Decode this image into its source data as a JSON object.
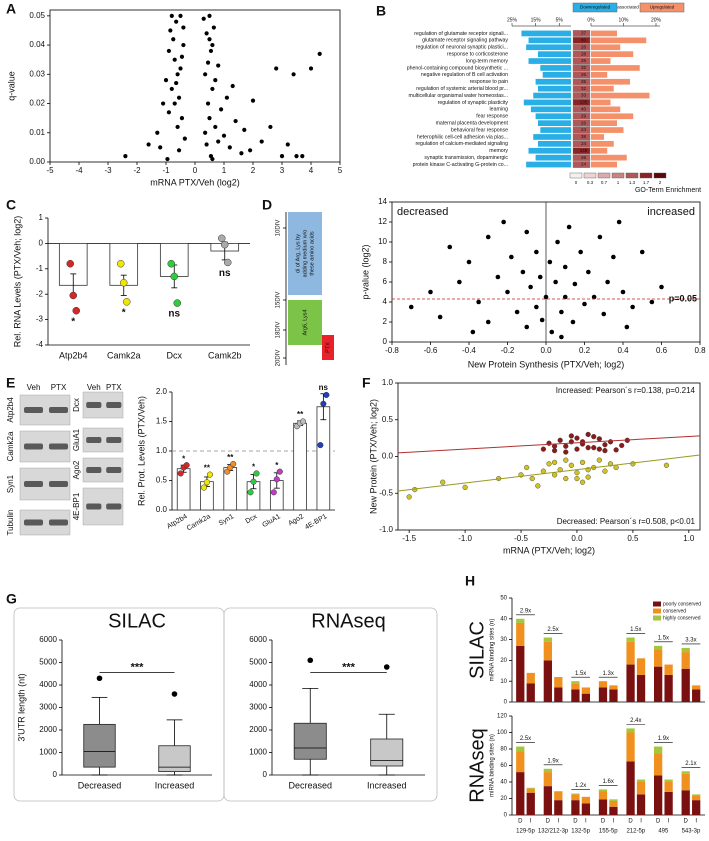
{
  "chart_data": [
    {
      "type": "scatter",
      "panel": "A",
      "xlabel": "mRNA PTX/Veh (log2)",
      "ylabel": "q-value",
      "color": "#000000",
      "xlim": [
        -5,
        5
      ],
      "xticks": [
        -5,
        -4,
        -3,
        -2,
        -1,
        0,
        1,
        2,
        3,
        4,
        5
      ],
      "ylim": [
        0,
        0.052
      ],
      "yticks": [
        {
          "value": 0,
          "label": "0.00"
        },
        0.01,
        0.02,
        0.03,
        0.04,
        0.05
      ],
      "x": [
        -2.4,
        -1.6,
        -1.3,
        -1.1,
        -1.0,
        -0.9,
        -0.85,
        -0.8,
        -0.75,
        -0.7,
        -0.65,
        -0.6,
        -0.55,
        -0.5,
        -0.45,
        -0.4,
        -0.35,
        -0.6,
        -0.7,
        -0.5,
        -0.8,
        -0.4,
        -0.9,
        -0.55,
        -0.65,
        -0.45,
        -1.2,
        -0.95,
        0.3,
        0.35,
        0.4,
        0.45,
        0.5,
        0.55,
        0.6,
        0.65,
        0.7,
        0.8,
        0.9,
        1.0,
        1.1,
        1.2,
        1.4,
        1.6,
        0.4,
        0.5,
        0.6,
        0.35,
        0.45,
        0.55,
        0.7,
        0.5,
        0.6,
        0.8,
        1.3,
        1.7,
        2.0,
        2.3,
        2.8,
        3.0,
        3.2,
        3.5,
        3.7,
        4.0,
        4.3,
        2.6,
        3.4,
        1.9
      ],
      "y": [
        0.002,
        0.006,
        0.01,
        0.02,
        0.028,
        0.038,
        0.045,
        0.05,
        0.042,
        0.035,
        0.048,
        0.03,
        0.022,
        0.05,
        0.015,
        0.04,
        0.008,
        0.012,
        0.02,
        0.032,
        0.025,
        0.046,
        0.017,
        0.004,
        0.027,
        0.036,
        0.005,
        0.001,
        0.049,
        0.03,
        0.044,
        0.02,
        0.05,
        0.038,
        0.025,
        0.046,
        0.012,
        0.033,
        0.018,
        0.009,
        0.022,
        0.005,
        0.014,
        0.003,
        0.006,
        0.015,
        0.04,
        0.01,
        0.034,
        0.002,
        0.028,
        0.042,
        0.001,
        0.007,
        0.026,
        0.011,
        0.021,
        0.007,
        0.032,
        0.002,
        0.006,
        0.002,
        0.002,
        0.032,
        0.037,
        0.012,
        0.03,
        0.004
      ]
    },
    {
      "type": "diverging",
      "panel": "B",
      "categories": [
        "regulation of glutamate receptor signali...",
        "glutamate receptor signaling pathway",
        "regulation of neuronal synaptic plastici...",
        "response to corticosterone",
        "long-term memory",
        "phenol-containing compound biosynthetic ...",
        "negative regulation of B cell activation",
        "response to pain",
        "regulation of systemic arterial blood pr...",
        "multicellular organismal water homeostas...",
        "regulation of synaptic plasticity",
        "learning",
        "fear response",
        "maternal placenta development",
        "behavioral fear response",
        "heterophilic cell-cell adhesion via plas...",
        "regulation of calcium-mediated signaling",
        "memory",
        "synaptic transmission, dopaminergic",
        "protein kinase C-activating G-protein co..."
      ],
      "series": [
        {
          "name": "Downregulated",
          "color": "#29aee6",
          "values": [
            21,
            18,
            19,
            14,
            18,
            13,
            12,
            15,
            14,
            16,
            20,
            17,
            15,
            14,
            13,
            16,
            14,
            18,
            15,
            19
          ]
        },
        {
          "name": "Upregulated",
          "color": "#f4916a",
          "values": [
            8,
            17,
            9,
            13,
            6,
            15,
            5,
            12,
            7,
            18,
            6,
            9,
            13,
            8,
            10,
            4,
            7,
            5,
            11,
            8
          ]
        }
      ],
      "legend_middle": "associated",
      "counts": [
        37,
        80,
        26,
        28,
        26,
        32,
        26,
        35,
        32,
        33,
        135,
        40,
        29,
        26,
        24,
        38,
        24,
        149,
        26,
        24
      ],
      "enrichment": [
        1.3,
        1.7,
        1.3,
        1.3,
        1.3,
        1.3,
        1.3,
        1.3,
        1.3,
        1.3,
        1.7,
        1.3,
        1.3,
        1.3,
        1.3,
        1.3,
        1.3,
        1.7,
        1.3,
        1.3
      ],
      "down_lim": [
        0,
        25
      ],
      "down_ticks": [
        {
          "value": 25,
          "label": "25%"
        },
        {
          "value": 15,
          "label": "15%"
        },
        {
          "value": 5,
          "label": "5%"
        }
      ],
      "up_lim": [
        0,
        20
      ],
      "up_ticks": [
        {
          "value": 0,
          "label": "0%"
        },
        {
          "value": 10,
          "label": "10%"
        },
        {
          "value": 20,
          "label": "20%"
        }
      ],
      "colorbar": {
        "ticks": [
          0,
          0.3,
          0.7,
          1,
          1.3,
          1.7,
          2
        ],
        "colors": [
          "#f7eeee",
          "#ecd2d2",
          "#dcaaaa",
          "#c98383",
          "#b25757",
          "#8a2424",
          "#5a0808"
        ]
      },
      "xlabel": "GO-Term Enrichment"
    },
    {
      "type": "bar",
      "panel": "C",
      "ylabel": "Rel. RNA Levels (PTX/Veh; log2)",
      "categories": [
        "Atp2b4",
        "Camk2a",
        "Dcx",
        "Camk2b"
      ],
      "values": [
        -1.65,
        -1.65,
        -1.3,
        -0.3
      ],
      "errors": [
        0.45,
        0.4,
        0.45,
        0.35
      ],
      "points": [
        [
          -0.8,
          -2.05,
          -2.65
        ],
        [
          -0.8,
          -1.55,
          -2.3
        ],
        [
          -0.8,
          -1.3,
          -2.35
        ],
        [
          0.2,
          -0.05,
          -0.75
        ]
      ],
      "point_colors": [
        "#d62728",
        "#f2e600",
        "#2ecc40",
        "#aaaaaa"
      ],
      "significance": [
        "*",
        "*",
        "ns",
        "ns"
      ],
      "ylim": [
        -4,
        1
      ],
      "yticks": [
        -4,
        -3,
        -2,
        -1,
        0,
        1
      ]
    },
    {
      "type": "scatter",
      "panel": "D",
      "xlabel": "New Protein Synthesis (PTX/Veh; log2)",
      "ylabel": "p-value (log2)",
      "color": "#000000",
      "xlim": [
        -0.8,
        0.8
      ],
      "xticks": [
        -0.8,
        -0.6,
        -0.4,
        -0.2,
        {
          "value": 0,
          "label": "0.0"
        },
        0.2,
        0.4,
        0.6,
        0.8
      ],
      "ylim": [
        0,
        14
      ],
      "yticks": [
        0,
        2,
        4,
        6,
        8,
        10,
        12,
        14
      ],
      "zero_line": true,
      "hline": {
        "value": 4.3,
        "label": "p=0.05",
        "color": "#d0201a"
      },
      "annotations": [
        {
          "text": "decreased",
          "color": "#1a9a3a"
        },
        {
          "text": "increased",
          "color": "#d0201a"
        }
      ],
      "x": [
        -0.7,
        -0.5,
        -0.45,
        -0.4,
        -0.35,
        -0.3,
        -0.3,
        -0.25,
        -0.22,
        -0.2,
        -0.18,
        -0.15,
        -0.12,
        -0.1,
        -0.1,
        -0.08,
        -0.05,
        -0.05,
        -0.03,
        -0.02,
        0,
        0.02,
        0.03,
        0.05,
        0.06,
        0.08,
        0.1,
        0.1,
        0.12,
        0.14,
        0.15,
        0.18,
        0.2,
        0.22,
        0.25,
        0.28,
        0.3,
        0.32,
        0.35,
        0.4,
        0.45,
        0.5,
        0.55,
        0.6,
        -0.6,
        -0.55,
        0.38,
        0.42,
        -0.38,
        0.08
      ],
      "y": [
        3.5,
        9.5,
        6,
        8,
        4,
        10.5,
        2,
        6.5,
        12,
        5,
        8.5,
        3,
        7,
        11,
        1.5,
        5.5,
        9,
        3.5,
        6.5,
        2.2,
        4.5,
        8,
        1,
        6,
        10,
        3,
        7.5,
        4.5,
        11.5,
        2,
        5.8,
        9,
        3.8,
        7,
        4.5,
        10.5,
        2.8,
        6,
        8.5,
        5,
        3.5,
        9,
        4,
        5.5,
        5,
        2.5,
        12,
        1.5,
        1,
        0.5
      ]
    },
    {
      "type": "bar",
      "panel": "E",
      "ylabel": "Rel. Prot. Levels (PTX/Veh)",
      "categories": [
        "Atp2b4",
        "Camk2a",
        "Syn1",
        "Dcx",
        "GluA1",
        "Ago2",
        "4E-BP1"
      ],
      "values": [
        0.7,
        0.48,
        0.72,
        0.48,
        0.5,
        1.47,
        1.75
      ],
      "errors": [
        0.06,
        0.08,
        0.05,
        0.12,
        0.13,
        0.04,
        0.22
      ],
      "points": [
        [
          0.62,
          0.72,
          0.76
        ],
        [
          0.38,
          0.47,
          0.6
        ],
        [
          0.65,
          0.72,
          0.78
        ],
        [
          0.3,
          0.48,
          0.62
        ],
        [
          0.3,
          0.52,
          0.65
        ],
        [
          1.42,
          1.47,
          1.5
        ],
        [
          1.1,
          1.8,
          1.95
        ]
      ],
      "point_colors": [
        "#d62728",
        "#f2e600",
        "#f28c28",
        "#2ecc40",
        "#c23cc2",
        "#bbbbbb",
        "#1f3fbf"
      ],
      "significance": [
        "*",
        "**",
        "**",
        "*",
        "*",
        "**",
        "ns"
      ],
      "refline": 1,
      "ylim": [
        0,
        2
      ],
      "yticks": [
        {
          "value": 0,
          "label": "0.0"
        },
        0.5,
        {
          "value": 1,
          "label": "1.0"
        },
        1.5,
        {
          "value": 2,
          "label": "2.0"
        }
      ]
    },
    {
      "type": "scatter",
      "panel": "F",
      "xlabel": "mRNA (PTX/Veh; log2)",
      "ylabel": "New Protein (PTX/Veh; log2)",
      "xlim": [
        -1.6,
        1.1
      ],
      "xticks": [
        -1.5,
        {
          "value": -1,
          "label": "-1.0"
        },
        -0.5,
        {
          "value": 0,
          "label": "0.0"
        },
        0.5,
        {
          "value": 1,
          "label": "1.0"
        }
      ],
      "ylim": [
        -1,
        1
      ],
      "yticks": [
        {
          "value": -1,
          "label": "-1.0"
        },
        -0.5,
        {
          "value": 0,
          "label": "0.0"
        },
        0.5,
        {
          "value": 1,
          "label": "1.0"
        }
      ],
      "series": [
        {
          "color": "#8b1a1a",
          "x": [
            -0.3,
            -0.25,
            -0.2,
            -0.15,
            -0.1,
            -0.05,
            0,
            0.05,
            0.1,
            0.15,
            0.2,
            0.25,
            0.3,
            0.35,
            0.4,
            -0.1,
            0,
            0.1,
            0.2,
            -0.2,
            0.05,
            0.15,
            0.25,
            0.45,
            -0.05
          ],
          "y": [
            0.1,
            0.18,
            0.08,
            0.22,
            0.14,
            0.28,
            0.1,
            0.2,
            0.3,
            0.12,
            0.24,
            0.16,
            0.2,
            0.09,
            0.15,
            0.06,
            0.25,
            0.12,
            0.1,
            0.14,
            0.17,
            0.27,
            0.08,
            0.22,
            0.2
          ]
        },
        {
          "color": "#cfc424",
          "x": [
            -1.5,
            -1.45,
            -1.2,
            -1.0,
            -0.7,
            -0.5,
            -0.45,
            -0.4,
            -0.3,
            -0.25,
            -0.2,
            -0.15,
            -0.1,
            -0.05,
            0,
            0.05,
            0.1,
            0.15,
            0.2,
            0.25,
            0.3,
            0.35,
            -0.35,
            -0.1,
            0.05,
            0.1,
            -0.2,
            0.0,
            0.5,
            0.8
          ],
          "y": [
            -0.55,
            -0.45,
            -0.35,
            -0.42,
            -0.3,
            -0.25,
            -0.15,
            -0.3,
            -0.2,
            -0.1,
            -0.25,
            -0.18,
            -0.3,
            -0.12,
            -0.22,
            -0.08,
            -0.28,
            -0.15,
            -0.05,
            -0.2,
            -0.1,
            -0.15,
            -0.4,
            -0.05,
            -0.35,
            -0.18,
            -0.08,
            -0.3,
            -0.1,
            -0.12
          ]
        }
      ],
      "fits": [
        {
          "color": "#b03030",
          "x": [
            -1.6,
            1.1
          ],
          "y": [
            0.05,
            0.28
          ]
        },
        {
          "color": "#9a9a20",
          "x": [
            -1.6,
            1.1
          ],
          "y": [
            -0.47,
            0.02
          ]
        }
      ],
      "annotations": [
        {
          "text": "Increased: Pearson´s r=0.138, p=0.214",
          "color": "#8b1a1a"
        },
        {
          "text": "Decreased: Pearson´s r=0.508, p<0.01",
          "color": "#9a9a10"
        }
      ]
    },
    {
      "type": "box",
      "panel": "G",
      "title": "SILAC",
      "ylabel": "3'UTR length (nt)",
      "categories": [
        "Decreased",
        "Increased"
      ],
      "colors": [
        "#8c8c8c",
        "#c8c8c8"
      ],
      "boxes": [
        {
          "whislo": 0,
          "q1": 350,
          "med": 1050,
          "q3": 2250,
          "whishi": 3450,
          "fliers": [
            4300
          ]
        },
        {
          "whislo": 0,
          "q1": 150,
          "med": 350,
          "q3": 1300,
          "whishi": 2450,
          "fliers": [
            3600
          ]
        }
      ],
      "significance": "***",
      "ylim": [
        0,
        6000
      ],
      "yticks": [
        0,
        1000,
        2000,
        3000,
        4000,
        5000,
        6000
      ]
    },
    {
      "type": "box",
      "title": "RNAseq",
      "categories": [
        "Decreased",
        "Increased"
      ],
      "colors": [
        "#8c8c8c",
        "#c8c8c8"
      ],
      "boxes": [
        {
          "whislo": 0,
          "q1": 700,
          "med": 1200,
          "q3": 2300,
          "whishi": 3850,
          "fliers": [
            5100
          ]
        },
        {
          "whislo": 0,
          "q1": 400,
          "med": 650,
          "q3": 1600,
          "whishi": 2700,
          "fliers": [
            4800
          ]
        }
      ],
      "significance": "***",
      "ylim": [
        0,
        6000
      ],
      "yticks": [
        0,
        1000,
        2000,
        3000,
        4000,
        5000,
        6000
      ]
    },
    {
      "type": "stacked",
      "panel": "H",
      "title": "SILAC",
      "ylabel": "miRNA binding sites (n)",
      "series": [
        {
          "name": "poorly conserved",
          "color": "#7b1010",
          "values": [
            27,
            9,
            20,
            7,
            6,
            4,
            7,
            6,
            18,
            13,
            17,
            13,
            16,
            6
          ]
        },
        {
          "name": "conserved",
          "color": "#f0901e",
          "values": [
            11,
            5,
            9,
            5,
            3,
            3,
            3,
            2,
            11,
            8,
            8,
            5,
            8,
            2
          ]
        },
        {
          "name": "highly conserved",
          "color": "#a4c63c",
          "values": [
            2,
            0,
            2,
            0,
            1,
            0,
            0,
            0,
            2,
            0,
            2,
            0,
            2,
            0
          ]
        }
      ],
      "fold_labels": [
        "2.9x",
        "2.5x",
        "1.5x",
        "1.3x",
        "1.5x",
        "1.5x",
        "3.3x"
      ],
      "ylim": [
        0,
        50
      ],
      "yticks": [
        0,
        10,
        20,
        30,
        40,
        50
      ]
    },
    {
      "type": "stacked",
      "title": "RNAseq",
      "ylabel": "miRNA binding sites (n)",
      "categories": [
        "D",
        "I",
        "D",
        "I",
        "D",
        "I",
        "D",
        "I",
        "D",
        "I",
        "D",
        "I",
        "D",
        "I"
      ],
      "groups": [
        "129-5p",
        "132/212-3p",
        "132-5p",
        "155-5p",
        "212-5p",
        "495",
        "543-3p"
      ],
      "series": [
        {
          "color": "#7b1010",
          "values": [
            52,
            27,
            35,
            18,
            18,
            14,
            19,
            10,
            65,
            25,
            48,
            28,
            30,
            18
          ]
        },
        {
          "color": "#f0901e",
          "values": [
            25,
            5,
            17,
            10,
            7,
            8,
            10,
            7,
            35,
            15,
            27,
            12,
            20,
            6
          ]
        },
        {
          "color": "#a4c63c",
          "values": [
            6,
            1,
            4,
            1,
            1,
            0,
            2,
            2,
            5,
            3,
            8,
            3,
            3,
            1
          ]
        }
      ],
      "fold_labels": [
        "2.5x",
        "1.9x",
        "1.2x",
        "1.6x",
        "2.4x",
        "1.9x",
        "2.1x"
      ],
      "ylim": [
        0,
        120
      ],
      "yticks": [
        0,
        20,
        40,
        60,
        80,
        100,
        120
      ]
    }
  ],
  "timeline": {
    "ticks": [
      "10DIV",
      "15DIV",
      "18DIV",
      "20DIV"
    ],
    "boxes": [
      [
        "di of Arg, Lys by",
        "adding medium w/o",
        "these amino acids"
      ],
      [
        "Arg6, Lys4"
      ],
      [
        "PTX"
      ]
    ]
  },
  "blots": {
    "left_header": [
      "Veh",
      "PTX"
    ],
    "left_labels": [
      "Atp2b4",
      "Camk2a",
      "Syn1",
      "Tubulin"
    ],
    "right_header": [
      "Veh",
      "PTX"
    ],
    "right_labels": [
      "Dcx",
      "GluA1",
      "Ago2",
      "4E-BP1"
    ]
  }
}
